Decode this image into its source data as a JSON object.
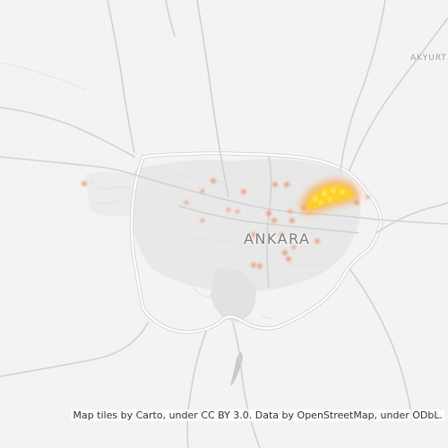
{
  "map": {
    "city_label": "ANKARA",
    "town_label": "AKYURT",
    "attribution": "Map tiles by Carto, under CC BY 3.0. Data by OpenStreetMap, under ODbL.",
    "colors": {
      "land": "#f3f3f3",
      "urban": "#e6e6e6",
      "road": "#ffffff",
      "road_casing": "#c8c8c8",
      "water": "#c8c8c8",
      "heat_core": "#ffd21a",
      "heat_glow": "#ff9a2e",
      "point": "#f08a6a"
    }
  }
}
